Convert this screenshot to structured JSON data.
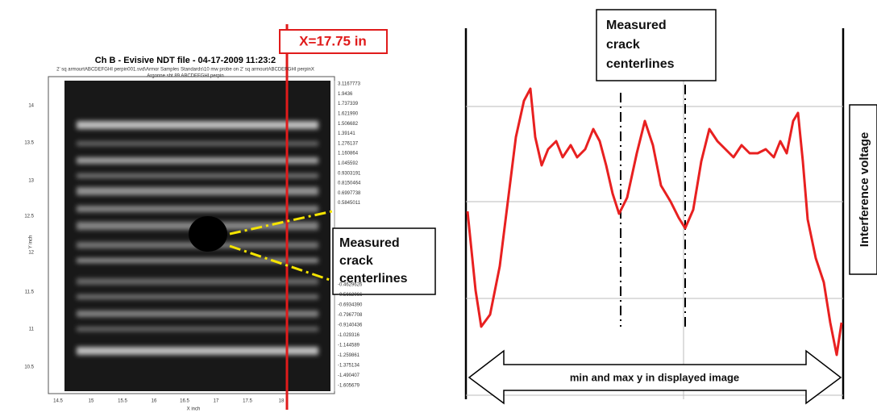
{
  "left_panel": {
    "title": "Ch B - Evisive NDT file - 04-17-2009 11:23:2",
    "subtitle_lines": [
      "2' sq armourtABCDEFGHI perpin001.svd\\Armor Samples Standards\\10 mw probe on 2' sq armourtABCDEFGHI perpinX",
      "Argonne sht 89 ABCDEFGHI perpin"
    ],
    "marker_label": "X=17.75 in",
    "y_axis_label": "Y inch",
    "x_axis_label": "X inch",
    "y_ticks": [
      "14",
      "13.5",
      "13",
      "12.5",
      "12",
      "11.5",
      "11",
      "10.5"
    ],
    "x_ticks": [
      "14.5",
      "15",
      "15.5",
      "16",
      "16.5",
      "17",
      "17.5",
      "18"
    ],
    "colorbar_upper": [
      "3.1167773",
      "1.9436",
      "1.737339",
      "1.621990",
      "1.506682",
      "1.39141",
      "1.276137",
      "1.160864",
      "1.045592",
      "0.9303191",
      "0.8150464",
      "0.6997738",
      "0.5845011"
    ],
    "colorbar_lower": [
      "-0.4629626",
      "-0.5662066",
      "-0.6934390",
      "-0.7967708",
      "-0.9140436",
      "-1.029316",
      "-1.144589",
      "-1.259861",
      "-1.375134",
      "-1.490407",
      "-1.605679"
    ],
    "callout": [
      "Measured",
      "crack",
      "centerlines"
    ]
  },
  "right_panel": {
    "callout": [
      "Measured",
      "crack",
      "centerlines"
    ],
    "y_axis_label": "Interference voltage",
    "range_label": "min and max y in displayed image"
  }
}
